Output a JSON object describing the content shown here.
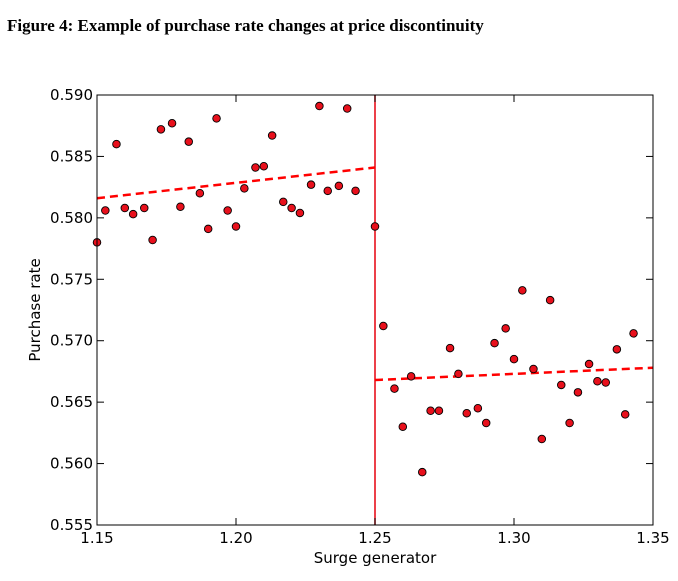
{
  "figure_title": "Figure 4: Example of purchase rate changes at price discontinuity",
  "colors": {
    "points": "#e8101c",
    "point_edge": "#000000",
    "fit_line": "#ff0000",
    "threshold_line": "#e8101c"
  },
  "chart_data": {
    "type": "scatter",
    "xlabel": "Surge generator",
    "ylabel": "Purchase rate",
    "xlim": [
      1.15,
      1.35
    ],
    "ylim": [
      0.555,
      0.59
    ],
    "xticks": [
      1.15,
      1.2,
      1.25,
      1.3,
      1.35
    ],
    "xtick_labels": [
      "1.15",
      "1.20",
      "1.25",
      "1.30",
      "1.35"
    ],
    "yticks": [
      0.555,
      0.56,
      0.565,
      0.57,
      0.575,
      0.58,
      0.585,
      0.59
    ],
    "ytick_labels": [
      "0.555",
      "0.560",
      "0.565",
      "0.570",
      "0.575",
      "0.580",
      "0.585",
      "0.590"
    ],
    "grid": false,
    "threshold_x": 1.25,
    "series": [
      {
        "points": [
          [
            1.15,
            0.578
          ],
          [
            1.153,
            0.5806
          ],
          [
            1.157,
            0.586
          ],
          [
            1.16,
            0.5808
          ],
          [
            1.163,
            0.5803
          ],
          [
            1.167,
            0.5808
          ],
          [
            1.17,
            0.5782
          ],
          [
            1.173,
            0.5872
          ],
          [
            1.177,
            0.5877
          ],
          [
            1.18,
            0.5809
          ],
          [
            1.183,
            0.5862
          ],
          [
            1.187,
            0.582
          ],
          [
            1.19,
            0.5791
          ],
          [
            1.193,
            0.5881
          ],
          [
            1.197,
            0.5806
          ],
          [
            1.2,
            0.5793
          ],
          [
            1.203,
            0.5824
          ],
          [
            1.207,
            0.5841
          ],
          [
            1.21,
            0.5842
          ],
          [
            1.213,
            0.5867
          ],
          [
            1.217,
            0.5813
          ],
          [
            1.22,
            0.5808
          ],
          [
            1.223,
            0.5804
          ],
          [
            1.227,
            0.5827
          ],
          [
            1.23,
            0.5891
          ],
          [
            1.233,
            0.5822
          ],
          [
            1.237,
            0.5826
          ],
          [
            1.24,
            0.5889
          ],
          [
            1.243,
            0.5822
          ],
          [
            1.25,
            0.5793
          ]
        ],
        "fit": [
          [
            1.15,
            0.5816
          ],
          [
            1.25,
            0.5841
          ]
        ]
      },
      {
        "points": [
          [
            1.253,
            0.5712
          ],
          [
            1.257,
            0.5661
          ],
          [
            1.26,
            0.563
          ],
          [
            1.263,
            0.5671
          ],
          [
            1.267,
            0.5593
          ],
          [
            1.27,
            0.5643
          ],
          [
            1.273,
            0.5643
          ],
          [
            1.277,
            0.5694
          ],
          [
            1.28,
            0.5673
          ],
          [
            1.283,
            0.5641
          ],
          [
            1.287,
            0.5645
          ],
          [
            1.29,
            0.5633
          ],
          [
            1.293,
            0.5698
          ],
          [
            1.297,
            0.571
          ],
          [
            1.3,
            0.5685
          ],
          [
            1.303,
            0.5741
          ],
          [
            1.307,
            0.5677
          ],
          [
            1.31,
            0.562
          ],
          [
            1.313,
            0.5733
          ],
          [
            1.317,
            0.5664
          ],
          [
            1.32,
            0.5633
          ],
          [
            1.323,
            0.5658
          ],
          [
            1.327,
            0.5681
          ],
          [
            1.33,
            0.5667
          ],
          [
            1.333,
            0.5666
          ],
          [
            1.337,
            0.5693
          ],
          [
            1.34,
            0.564
          ],
          [
            1.343,
            0.5706
          ]
        ],
        "fit": [
          [
            1.25,
            0.5668
          ],
          [
            1.35,
            0.5678
          ]
        ]
      }
    ]
  }
}
